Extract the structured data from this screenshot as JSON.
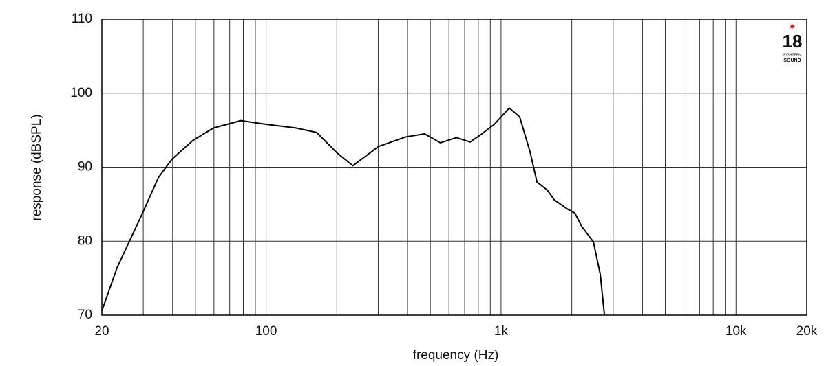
{
  "chart_data": {
    "type": "line",
    "x_label": "frequency (Hz)",
    "y_label": "response (dBSPL)",
    "x_scale": "log",
    "x": [
      20,
      23.2,
      29.8,
      34.8,
      39.8,
      48.7,
      59.7,
      78.1,
      100,
      134,
      164,
      201,
      234,
      301,
      394,
      473,
      552,
      646,
      739,
      828,
      936,
      1084,
      1200,
      1328,
      1422,
      1574,
      1683,
      1927,
      2061,
      2204,
      2472,
      2645,
      2755
    ],
    "series": [
      {
        "name": "response",
        "color": "#000000",
        "values": [
          70.6,
          76.4,
          83.8,
          88.6,
          91.1,
          93.6,
          95.3,
          96.3,
          95.8,
          95.3,
          94.7,
          91.9,
          90.2,
          92.8,
          94.1,
          94.5,
          93.3,
          94.0,
          93.4,
          94.5,
          95.8,
          98.0,
          96.8,
          92.1,
          88.0,
          86.9,
          85.6,
          84.3,
          83.8,
          82.0,
          79.9,
          75.5,
          70.0
        ]
      }
    ],
    "xlim": [
      20,
      20000
    ],
    "xticks": [
      20,
      100,
      {
        "value": 1000,
        "label": "1k"
      },
      {
        "value": 10000,
        "label": "10k"
      },
      {
        "value": 20000,
        "label": "20k"
      }
    ],
    "x_minor_grid": [
      30,
      40,
      50,
      60,
      70,
      80,
      90,
      200,
      300,
      400,
      500,
      600,
      700,
      800,
      900,
      2000,
      3000,
      4000,
      5000,
      6000,
      7000,
      8000,
      9000
    ],
    "ylim": [
      70,
      110
    ],
    "yticks": [
      70,
      80,
      90,
      100,
      110
    ],
    "grid": true,
    "logo": {
      "number": "18",
      "line1": "EIGHTEEN",
      "line2": "SOUND"
    }
  }
}
